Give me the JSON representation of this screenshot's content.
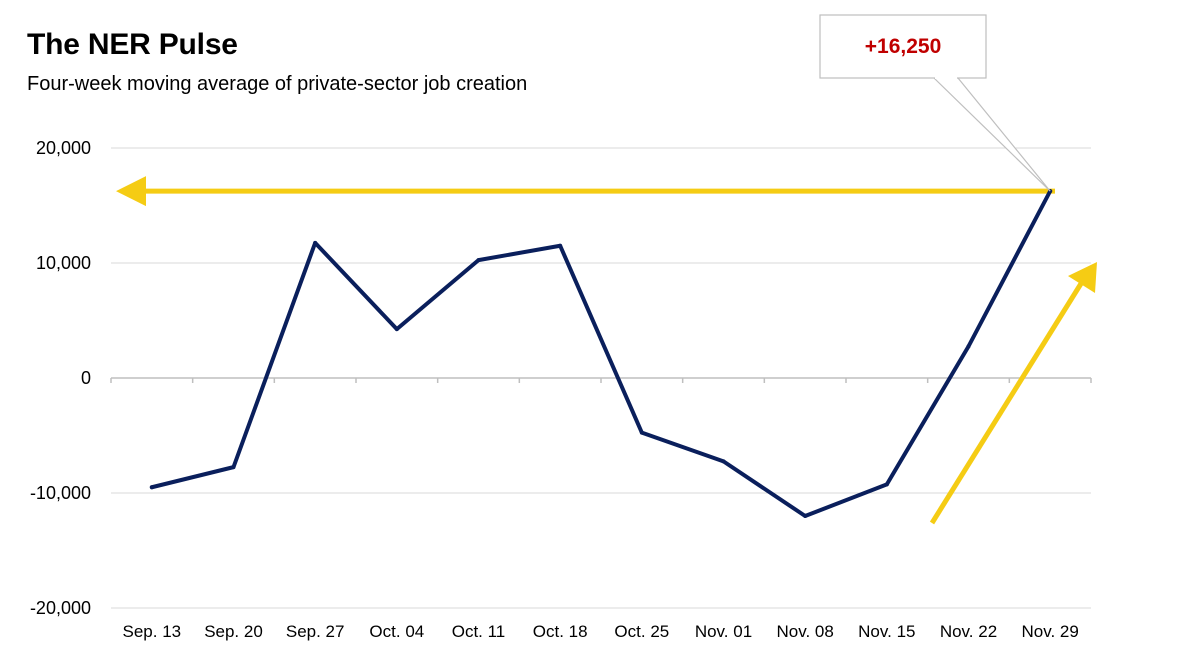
{
  "header": {
    "title": "The NER Pulse",
    "subtitle": "Four-week moving average of private-sector job creation"
  },
  "chart_data": {
    "type": "line",
    "title": "The NER Pulse",
    "subtitle": "Four-week moving average of private-sector job creation",
    "xlabel": "",
    "ylabel": "",
    "categories": [
      "Sep. 13",
      "Sep. 20",
      "Sep. 27",
      "Oct. 04",
      "Oct. 11",
      "Oct. 18",
      "Oct. 25",
      "Nov. 01",
      "Nov. 08",
      "Nov. 15",
      "Nov. 22",
      "Nov. 29"
    ],
    "series": [
      {
        "values": [
          -9500,
          -7750,
          11750,
          4250,
          10250,
          11500,
          -4750,
          -7250,
          -12000,
          -9250,
          2750,
          16250
        ],
        "color": "#0a1f5c"
      }
    ],
    "ylim": [
      -20000,
      20000
    ],
    "yticks": [
      -20000,
      -10000,
      0,
      10000,
      20000
    ],
    "ytick_labels": [
      "-20,000",
      "-10,000",
      "0",
      "10,000",
      "20,000"
    ],
    "grid": true,
    "legend": "none",
    "annotations": [
      {
        "text": "+16,250",
        "target_category": "Nov. 29",
        "target_value": 16250,
        "color": "#c00000"
      }
    ],
    "arrows": [
      {
        "kind": "horizontal-arrow-left",
        "level": 16250,
        "color": "#f5cc14"
      },
      {
        "kind": "diagonal-arrow-up",
        "color": "#f5cc14"
      }
    ]
  }
}
